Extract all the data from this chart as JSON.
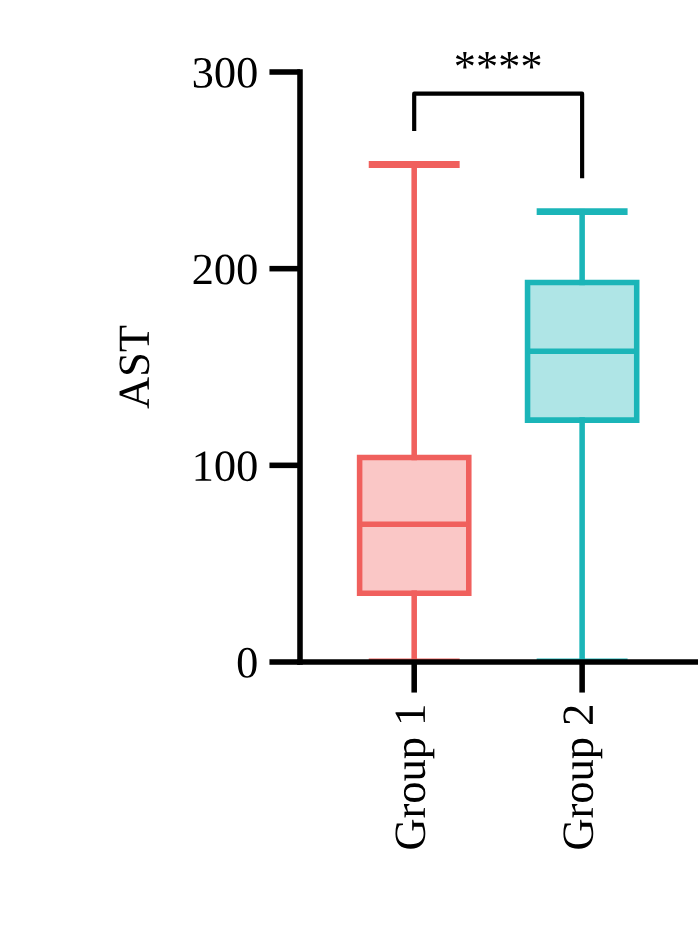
{
  "chart_data": {
    "type": "box",
    "ylabel": "AST",
    "categories": [
      "Group 1",
      "Group 2"
    ],
    "boxes": [
      {
        "low": 0,
        "q1": 35,
        "median": 70,
        "q3": 104,
        "high": 253
      },
      {
        "low": 0,
        "q1": 123,
        "median": 158,
        "q3": 193,
        "high": 229
      }
    ],
    "colors": [
      "#f0605d",
      "#1bb5b8"
    ],
    "ylim": [
      0,
      300
    ],
    "yticks": [
      0,
      100,
      200,
      300
    ],
    "grid": false,
    "legend": false,
    "annotations": [
      "****"
    ]
  }
}
